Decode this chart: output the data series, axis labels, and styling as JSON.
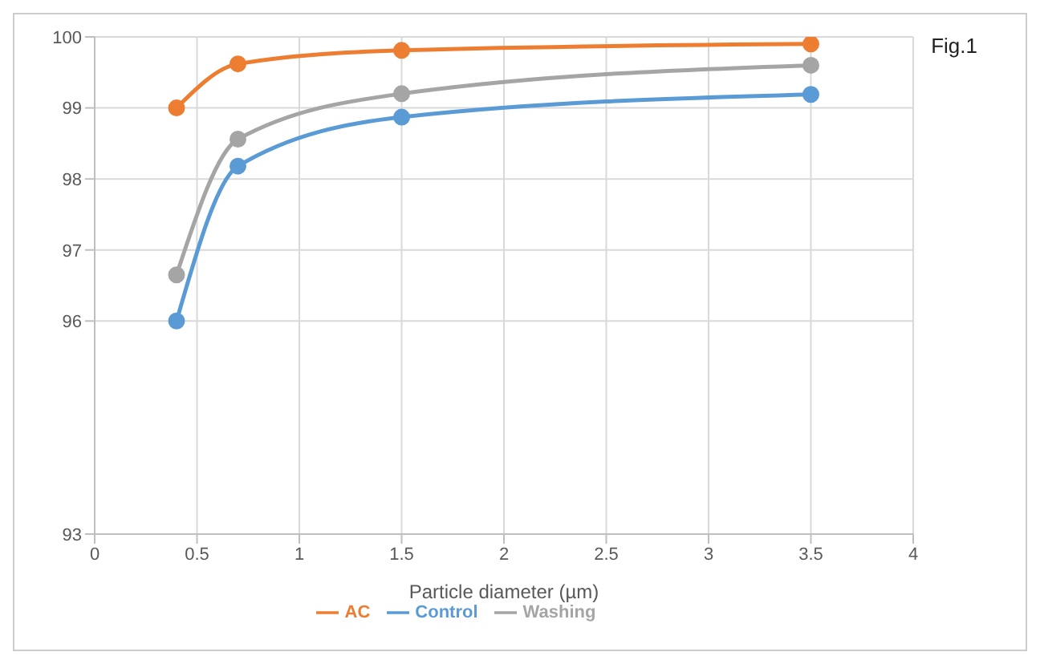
{
  "chart_data": {
    "type": "line",
    "xlabel": "Particle diameter (µm)",
    "annotations": [
      "Fig.1"
    ],
    "x": [
      0.4,
      0.7,
      1.5,
      3.5
    ],
    "series": [
      {
        "name": "Control",
        "color": "#5b9bd5",
        "values": [
          96.0,
          98.18,
          98.87,
          99.19
        ]
      },
      {
        "name": "AC",
        "color": "#ed7d31",
        "values": [
          99.0,
          99.62,
          99.81,
          99.9
        ]
      },
      {
        "name": "Washing",
        "color": "#a5a5a5",
        "values": [
          96.65,
          98.56,
          99.2,
          99.6
        ]
      }
    ],
    "xlim": [
      0,
      4
    ],
    "xticks": [
      0,
      0.5,
      1,
      1.5,
      2,
      2.5,
      3,
      3.5,
      4
    ],
    "ylim": [
      93,
      100
    ],
    "yticks": [
      93,
      96,
      97,
      98,
      99,
      100
    ],
    "grid": true,
    "legend": "bottom",
    "marker": "circle",
    "line_style": "solid"
  }
}
